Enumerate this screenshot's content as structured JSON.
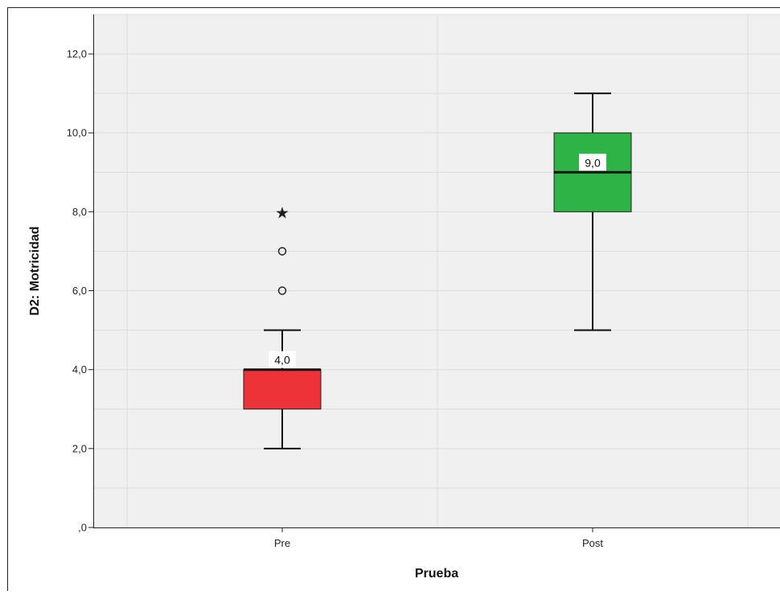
{
  "chart_data": {
    "type": "boxplot",
    "xlabel": "Prueba",
    "ylabel": "D2: Motricidad",
    "ylim": [
      0,
      13
    ],
    "y_ticks": [
      0,
      2,
      4,
      6,
      8,
      10,
      12
    ],
    "y_tick_labels": [
      ",0",
      "2,0",
      "4,0",
      "6,0",
      "8,0",
      "10,0",
      "12,0"
    ],
    "grid": true,
    "categories": [
      "Pre",
      "Post"
    ],
    "boxes": [
      {
        "category": "Pre",
        "whisker_low": 2,
        "q1": 3,
        "median": 4,
        "q3": 4,
        "whisker_high": 5,
        "median_label": "4,0",
        "color": "#ee3338",
        "outliers": [
          {
            "value": 6,
            "kind": "circle"
          },
          {
            "value": 7,
            "kind": "circle"
          },
          {
            "value": 8,
            "kind": "star"
          }
        ]
      },
      {
        "category": "Post",
        "whisker_low": 5,
        "q1": 8,
        "median": 9,
        "q3": 10,
        "whisker_high": 11,
        "median_label": "9,0",
        "color": "#2eb347",
        "outliers": []
      }
    ]
  }
}
